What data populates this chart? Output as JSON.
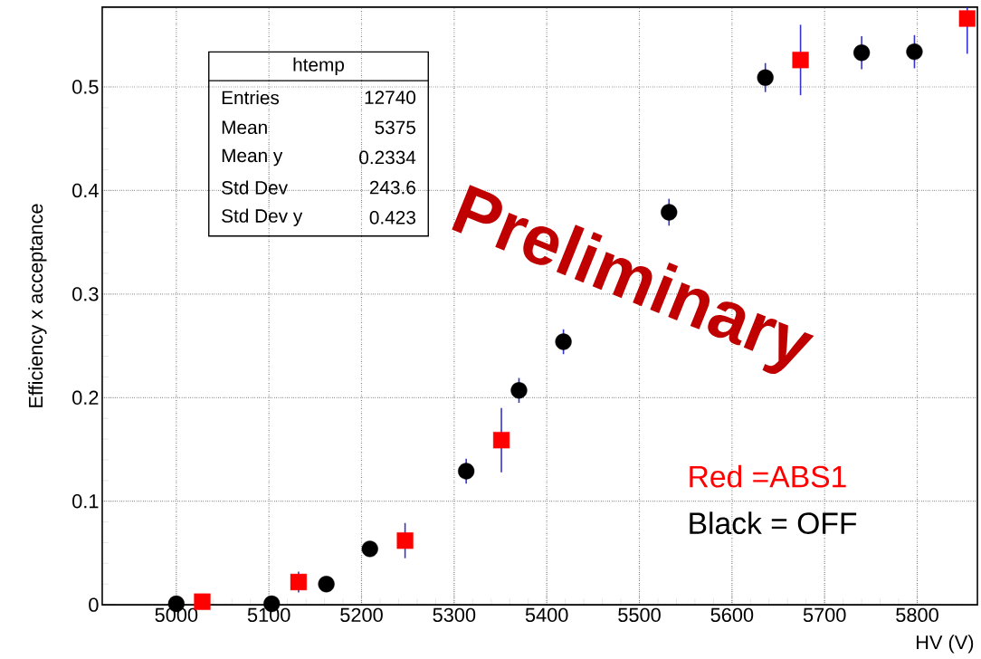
{
  "chart_data": {
    "type": "scatter",
    "xlabel": "HV (V)",
    "ylabel": "Efficiency x acceptance",
    "xlim": [
      4920,
      5865
    ],
    "ylim": [
      0,
      0.577
    ],
    "xticks": [
      5000,
      5100,
      5200,
      5300,
      5400,
      5500,
      5600,
      5700,
      5800
    ],
    "yticks": [
      0,
      0.1,
      0.2,
      0.3,
      0.4,
      0.5
    ],
    "grid": true,
    "series": [
      {
        "name": "Red =ABS1",
        "color": "#ff0000",
        "marker": "square",
        "x": [
          5028,
          5132,
          5247,
          5351,
          5674,
          5854
        ],
        "values": [
          0.003,
          0.022,
          0.062,
          0.159,
          0.526,
          0.566
        ],
        "errors": [
          null,
          0.01,
          0.017,
          0.031,
          0.034,
          [
            0.532,
            0.577
          ]
        ]
      },
      {
        "name": "Black = OFF",
        "color": "#000000",
        "marker": "circle",
        "x": [
          5000,
          5103,
          5162,
          5209,
          5313,
          5370,
          5418,
          5532,
          5636,
          5740,
          5797
        ],
        "values": [
          0.001,
          0.001,
          0.02,
          0.054,
          0.129,
          0.207,
          0.254,
          0.379,
          0.509,
          0.533,
          0.534
        ],
        "errors": [
          null,
          null,
          null,
          null,
          0.012,
          0.012,
          0.012,
          0.013,
          0.014,
          0.016,
          0.016
        ]
      }
    ],
    "annotations": [
      "htemp",
      "Entries",
      "12740",
      "Mean",
      "5375",
      "Mean y",
      "0.2334",
      "Std Dev",
      "243.6",
      "Std Dev y",
      "0.423",
      "Preliminary"
    ]
  }
}
